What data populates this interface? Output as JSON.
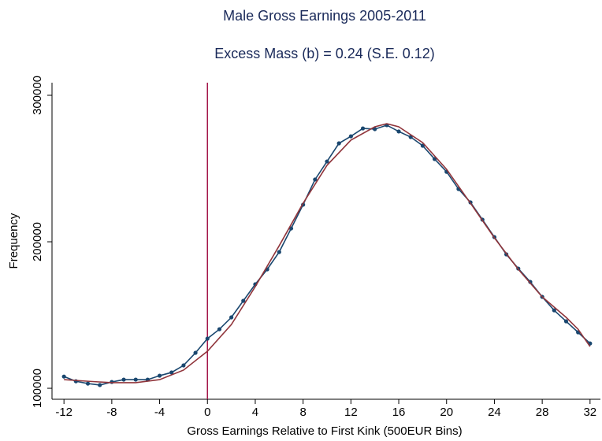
{
  "chart_data": {
    "type": "line",
    "title": "Male Gross Earnings 2005-2011",
    "subtitle": "Excess Mass (b) = 0.24 (S.E. 0.12)",
    "x_label": "Gross Earnings Relative to First Kink (500EUR Bins)",
    "y_label": "Frequency",
    "xlim": [
      -13,
      33
    ],
    "ylim": [
      92500,
      308600
    ],
    "xticks": [
      -12,
      -8,
      -4,
      0,
      4,
      8,
      12,
      16,
      20,
      24,
      28,
      32
    ],
    "yticks": [
      100000,
      200000,
      300000
    ],
    "reference_line": {
      "x": 0,
      "color": "#a3174a"
    },
    "series": [
      {
        "color": "#1a476f",
        "markers": true,
        "x": [
          -12,
          -11,
          -10,
          -9,
          -8,
          -7,
          -6,
          -5,
          -4,
          -3,
          -2,
          -1,
          0,
          1,
          2,
          3,
          4,
          5,
          6,
          7,
          8,
          9,
          10,
          11,
          12,
          13,
          14,
          15,
          16,
          17,
          18,
          19,
          20,
          21,
          22,
          23,
          24,
          25,
          26,
          27,
          28,
          29,
          30,
          31,
          32
        ],
        "values": [
          108000,
          104800,
          103200,
          102200,
          104300,
          105900,
          105900,
          105900,
          108600,
          110800,
          115600,
          124200,
          133900,
          140300,
          148400,
          159700,
          171000,
          181200,
          193000,
          209100,
          225300,
          242500,
          254800,
          267200,
          272000,
          277400,
          276900,
          279600,
          275300,
          271500,
          265600,
          256500,
          247800,
          236000,
          226900,
          215100,
          203200,
          191400,
          181700,
          172600,
          162400,
          153200,
          145700,
          138200,
          130600
        ]
      },
      {
        "color": "#90353b",
        "markers": false,
        "x": [
          -12,
          -10,
          -8,
          -6,
          -4,
          -2,
          0,
          2,
          4,
          6,
          8,
          10,
          12,
          14,
          15,
          16,
          18,
          20,
          22,
          24,
          26,
          28,
          30,
          31,
          32
        ],
        "values": [
          105900,
          104800,
          103800,
          103800,
          105900,
          112400,
          125300,
          143500,
          169400,
          197300,
          226300,
          252200,
          269400,
          278500,
          280600,
          278500,
          267700,
          249500,
          226300,
          202700,
          181200,
          162400,
          148400,
          140300,
          128500
        ]
      }
    ]
  }
}
